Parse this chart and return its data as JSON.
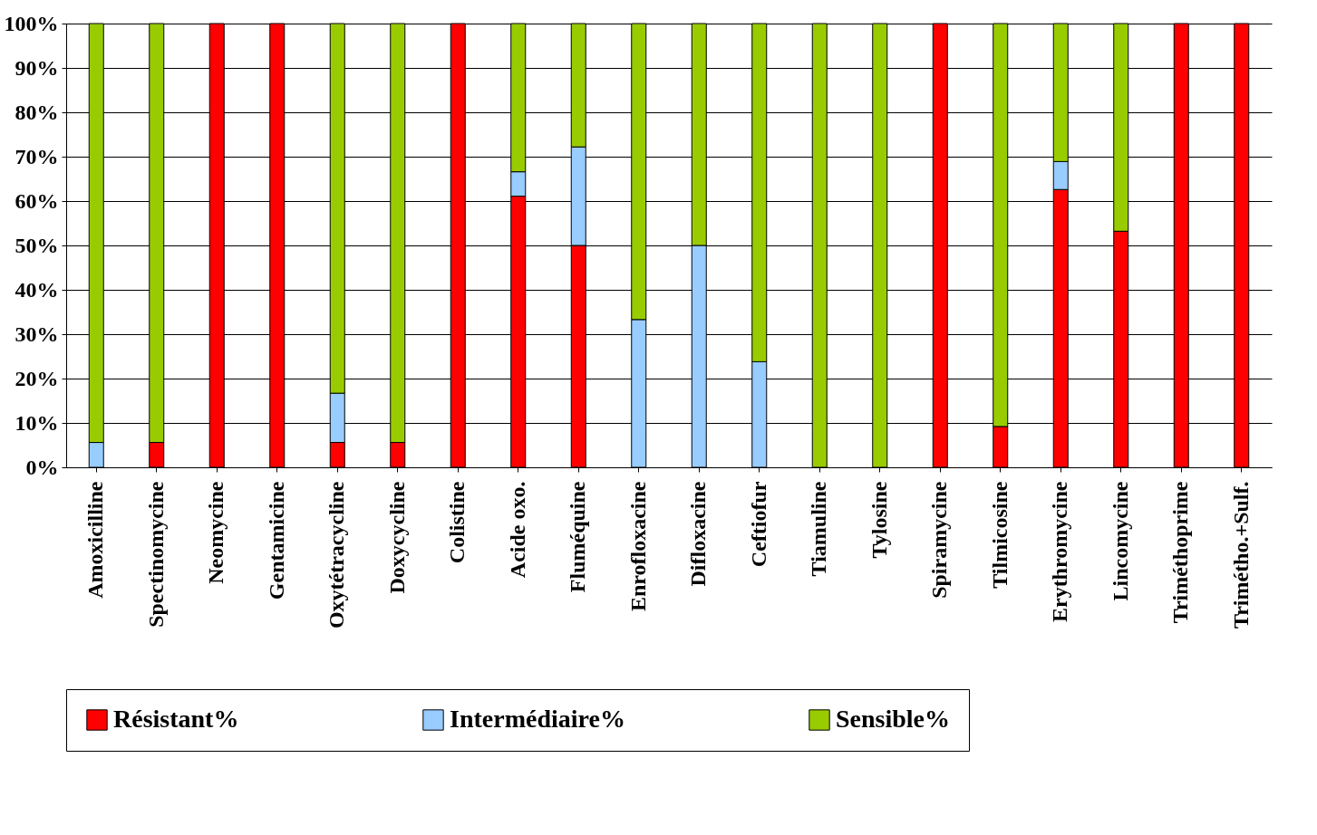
{
  "chart_data": {
    "type": "bar",
    "stacked": true,
    "categories": [
      "Amoxicilline",
      "Spectinomycine",
      "Neomycine",
      "Gentamicine",
      "Oxytétracycline",
      "Doxycycline",
      "Colistine",
      "Acide oxo.",
      "Fluméquine",
      "Enrofloxacine",
      "Difloxacine",
      "Ceftiofur",
      "Tiamuline",
      "Tylosine",
      "Spiramycine",
      "Tilmicosine",
      "Erythromycine",
      "Lincomycine",
      "Triméthoprime",
      "Trimétho.+Sulf."
    ],
    "series": [
      {
        "name": "Résistant%",
        "color": "#ff0000",
        "values": [
          null,
          5.6,
          100,
          100,
          5.6,
          5.6,
          100,
          61.1,
          50,
          null,
          null,
          null,
          null,
          null,
          100,
          9.2,
          62.6,
          53.2,
          100,
          100
        ]
      },
      {
        "name": "Intermédiaire%",
        "color": "#99ccff",
        "values": [
          5.6,
          null,
          null,
          null,
          11.1,
          null,
          null,
          5.5,
          22.2,
          33.3,
          50,
          23.8,
          null,
          null,
          null,
          null,
          6.3,
          null,
          null,
          null
        ]
      },
      {
        "name": "Sensible%",
        "color": "#99cc00",
        "values": [
          94.4,
          94.4,
          null,
          null,
          83.3,
          94.4,
          null,
          33.4,
          27.8,
          66.7,
          50,
          76.2,
          100,
          100,
          null,
          90.8,
          31.1,
          46.8,
          null,
          null
        ]
      }
    ],
    "ylim": [
      0,
      100
    ],
    "yticks": [
      {
        "value": 0,
        "label": "0%"
      },
      {
        "value": 10,
        "label": "10%"
      },
      {
        "value": 20,
        "label": "20%"
      },
      {
        "value": 30,
        "label": "30%"
      },
      {
        "value": 40,
        "label": "40%"
      },
      {
        "value": 50,
        "label": "50%"
      },
      {
        "value": 60,
        "label": "60%"
      },
      {
        "value": 70,
        "label": "70%"
      },
      {
        "value": 80,
        "label": "80%"
      },
      {
        "value": 90,
        "label": "90%"
      },
      {
        "value": 100,
        "label": "100%"
      }
    ],
    "grid": "y",
    "legend": "bottom"
  }
}
